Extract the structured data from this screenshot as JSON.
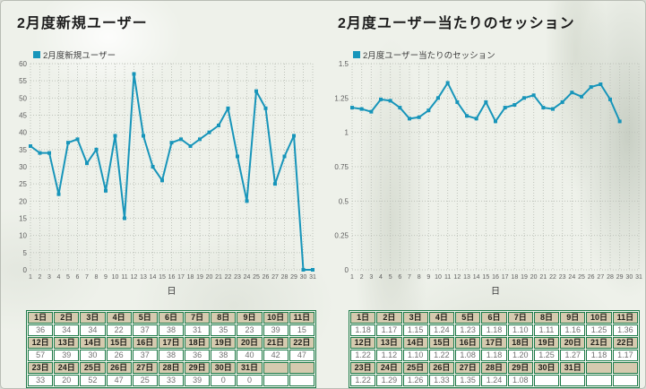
{
  "style": {
    "accent": "#1795ba",
    "grid_color": "#bfc3bb",
    "table_border": "#1c7a48",
    "table_header_bg": "#d5caaf",
    "page_tint": "#eef1ea"
  },
  "chart_data": [
    {
      "type": "line",
      "title": "2月度新規ユーザー",
      "legend": "2月度新規ユーザー",
      "xlabel": "日",
      "color": "#1795ba",
      "ylim": [
        0,
        60
      ],
      "ystep": 5,
      "yticks": [
        "0",
        "5",
        "10",
        "15",
        "20",
        "25",
        "30",
        "35",
        "40",
        "45",
        "50",
        "55",
        "60"
      ],
      "days": [
        1,
        2,
        3,
        4,
        5,
        6,
        7,
        8,
        9,
        10,
        11,
        12,
        13,
        14,
        15,
        16,
        17,
        18,
        19,
        20,
        21,
        22,
        23,
        24,
        25,
        26,
        27,
        28,
        29,
        30,
        31
      ],
      "values": [
        36,
        34,
        34,
        22,
        37,
        38,
        31,
        35,
        23,
        39,
        15,
        57,
        39,
        30,
        26,
        37,
        38,
        36,
        38,
        40,
        42,
        47,
        33,
        20,
        52,
        47,
        25,
        33,
        39,
        0,
        0
      ]
    },
    {
      "type": "line",
      "title": "2月度ユーザー当たりのセッション",
      "legend": "2月度ユーザー当たりのセッション",
      "xlabel": "日",
      "color": "#1795ba",
      "ylim": [
        0,
        1.5
      ],
      "ystep": 0.25,
      "yticks": [
        "0",
        "0.25",
        "0.5",
        "0.75",
        "1",
        "1.25",
        "1.5"
      ],
      "days": [
        1,
        2,
        3,
        4,
        5,
        6,
        7,
        8,
        9,
        10,
        11,
        12,
        13,
        14,
        15,
        16,
        17,
        18,
        19,
        20,
        21,
        22,
        23,
        24,
        25,
        26,
        27,
        28,
        29,
        30,
        31
      ],
      "values": [
        1.18,
        1.17,
        1.15,
        1.24,
        1.23,
        1.18,
        1.1,
        1.11,
        1.16,
        1.25,
        1.36,
        1.22,
        1.12,
        1.1,
        1.22,
        1.08,
        1.18,
        1.2,
        1.25,
        1.27,
        1.18,
        1.17,
        1.22,
        1.29,
        1.26,
        1.33,
        1.35,
        1.24,
        1.08,
        null,
        null
      ]
    }
  ],
  "tables": [
    {
      "groups": [
        {
          "headers": [
            "1日",
            "2日",
            "3日",
            "4日",
            "5日",
            "6日",
            "7日",
            "8日",
            "9日",
            "10日",
            "11日"
          ],
          "values": [
            "36",
            "34",
            "34",
            "22",
            "37",
            "38",
            "31",
            "35",
            "23",
            "39",
            "15"
          ]
        },
        {
          "headers": [
            "12日",
            "13日",
            "14日",
            "15日",
            "16日",
            "17日",
            "18日",
            "19日",
            "20日",
            "21日",
            "22日"
          ],
          "values": [
            "57",
            "39",
            "30",
            "26",
            "37",
            "38",
            "36",
            "38",
            "40",
            "42",
            "47"
          ]
        },
        {
          "headers": [
            "23日",
            "24日",
            "25日",
            "26日",
            "27日",
            "28日",
            "29日",
            "30日",
            "31日",
            "",
            ""
          ],
          "values": [
            "33",
            "20",
            "52",
            "47",
            "25",
            "33",
            "39",
            "0",
            "0",
            "",
            ""
          ]
        }
      ]
    },
    {
      "groups": [
        {
          "headers": [
            "1日",
            "2日",
            "3日",
            "4日",
            "5日",
            "6日",
            "7日",
            "8日",
            "9日",
            "10日",
            "11日"
          ],
          "values": [
            "1.18",
            "1.17",
            "1.15",
            "1.24",
            "1.23",
            "1.18",
            "1.10",
            "1.11",
            "1.16",
            "1.25",
            "1.36"
          ]
        },
        {
          "headers": [
            "12日",
            "13日",
            "14日",
            "15日",
            "16日",
            "17日",
            "18日",
            "19日",
            "20日",
            "21日",
            "22日"
          ],
          "values": [
            "1.22",
            "1.12",
            "1.10",
            "1.22",
            "1.08",
            "1.18",
            "1.20",
            "1.25",
            "1.27",
            "1.18",
            "1.17"
          ]
        },
        {
          "headers": [
            "23日",
            "24日",
            "25日",
            "26日",
            "27日",
            "28日",
            "29日",
            "30日",
            "31日",
            "",
            ""
          ],
          "values": [
            "1.22",
            "1.29",
            "1.26",
            "1.33",
            "1.35",
            "1.24",
            "1.08",
            "",
            "",
            "",
            ""
          ]
        }
      ]
    }
  ]
}
